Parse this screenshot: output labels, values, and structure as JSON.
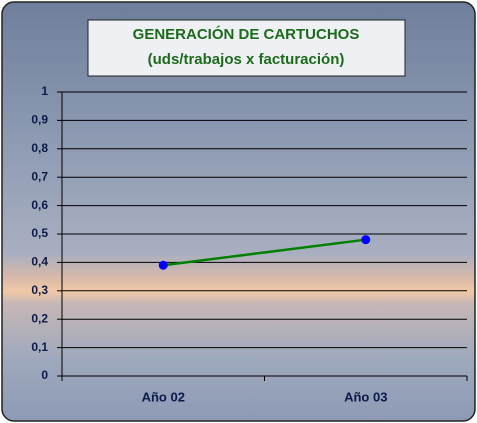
{
  "chart_data": {
    "type": "line",
    "title": "GENERACIÓN DE CARTUCHOS",
    "subtitle": "(uds/trabajos x facturación)",
    "categories": [
      "Año 02",
      "Año 03"
    ],
    "values": [
      0.39,
      0.48
    ],
    "color": "#008000",
    "marker_color": "#0000ff",
    "ylim": [
      0,
      1
    ],
    "yticks": [
      0,
      {
        "value": 0.1,
        "label": "0,1"
      },
      {
        "value": 0.2,
        "label": "0,2"
      },
      {
        "value": 0.3,
        "label": "0,3"
      },
      {
        "value": 0.4,
        "label": "0,4"
      },
      {
        "value": 0.5,
        "label": "0,5"
      },
      {
        "value": 0.6,
        "label": "0,6"
      },
      {
        "value": 0.7,
        "label": "0,7"
      },
      {
        "value": 0.8,
        "label": "0,8"
      },
      {
        "value": 0.9,
        "label": "0,9"
      },
      1
    ],
    "grid": true
  }
}
